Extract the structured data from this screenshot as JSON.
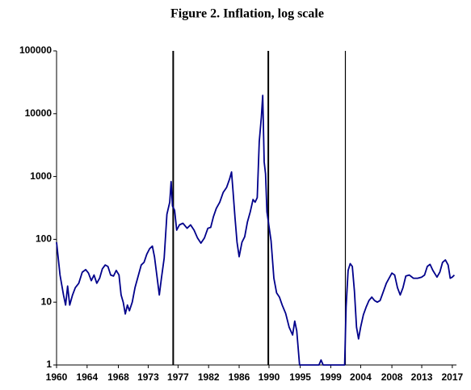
{
  "chart_data": {
    "type": "line",
    "title": "Figure 2. Inflation, log scale",
    "x": [
      1960.0,
      1960.5,
      1961.0,
      1961.3,
      1961.6,
      1961.9,
      1962.3,
      1962.7,
      1963.2,
      1963.7,
      1964.2,
      1964.6,
      1965.0,
      1965.4,
      1965.8,
      1966.2,
      1966.6,
      1967.0,
      1967.4,
      1967.8,
      1968.2,
      1968.6,
      1969.0,
      1969.3,
      1969.6,
      1969.9,
      1970.2,
      1970.5,
      1970.9,
      1971.3,
      1971.8,
      1972.2,
      1972.6,
      1973.0,
      1973.4,
      1973.8,
      1974.1,
      1974.5,
      1974.8,
      1975.1,
      1975.5,
      1975.9,
      1976.3,
      1976.5,
      1976.7,
      1977.0,
      1977.3,
      1977.7,
      1978.2,
      1978.8,
      1979.3,
      1979.8,
      1980.3,
      1980.8,
      1981.3,
      1981.8,
      1982.2,
      1982.6,
      1983.0,
      1983.5,
      1984.0,
      1984.5,
      1984.9,
      1985.2,
      1985.4,
      1985.7,
      1986.0,
      1986.3,
      1986.7,
      1987.1,
      1987.5,
      1987.9,
      1988.3,
      1988.6,
      1988.9,
      1989.2,
      1989.5,
      1989.7,
      1989.9,
      1990.1,
      1990.3,
      1990.6,
      1990.9,
      1991.3,
      1991.7,
      1992.1,
      1992.5,
      1993.0,
      1993.5,
      1994.0,
      1994.3,
      1994.6,
      1995.0,
      1997.8,
      1998.1,
      1998.4,
      2001.5,
      2001.7,
      2002.0,
      2002.3,
      2002.6,
      2002.9,
      2003.2,
      2003.5,
      2003.8,
      2004.2,
      2004.6,
      2005.0,
      2005.4,
      2005.8,
      2006.2,
      2006.6,
      2007.0,
      2007.5,
      2007.9,
      2008.3,
      2008.7,
      2009.1,
      2009.5,
      2009.9,
      2010.3,
      2010.8,
      2011.4,
      2012.0,
      2012.6,
      2013.0,
      2013.4,
      2013.8,
      2014.2,
      2014.8,
      2015.2,
      2015.6,
      2016.0,
      2016.4,
      2016.7,
      2017.0,
      2017.3
    ],
    "series": [
      {
        "name": "Inflation",
        "color": "#00008b",
        "values": [
          90,
          27,
          13,
          9,
          18,
          9,
          13,
          17,
          20,
          30,
          33,
          29,
          22,
          27,
          20,
          24,
          34,
          39,
          37,
          27,
          26,
          32,
          27,
          13,
          10,
          6.5,
          9,
          7.3,
          10,
          17,
          27,
          39,
          43,
          58,
          71,
          78,
          53,
          24,
          13,
          24,
          50,
          250,
          390,
          830,
          340,
          290,
          140,
          170,
          180,
          150,
          170,
          140,
          105,
          87,
          105,
          150,
          155,
          230,
          310,
          390,
          560,
          670,
          900,
          1180,
          620,
          220,
          90,
          53,
          90,
          110,
          190,
          275,
          430,
          390,
          460,
          3600,
          8800,
          19600,
          1700,
          1100,
          275,
          160,
          95,
          24,
          14,
          12,
          9,
          6.6,
          4,
          3,
          5,
          3.5,
          1,
          1,
          1.2,
          1,
          1,
          8.4,
          32,
          41,
          37,
          15,
          4,
          2.6,
          4,
          6.3,
          8.4,
          10.6,
          12,
          10.6,
          10,
          10.6,
          14,
          20,
          24,
          29,
          27,
          17,
          13,
          17,
          26,
          27,
          24,
          24,
          25,
          27,
          37,
          40,
          32,
          25,
          30,
          43,
          47,
          39,
          24,
          25,
          27
        ]
      }
    ],
    "vlines": [
      1976.8,
      1990.5,
      2001.6
    ],
    "log_y": true,
    "xlim": [
      1960,
      2017.6
    ],
    "ylim": [
      1,
      100000
    ],
    "yticks": [
      1,
      10,
      100,
      1000,
      10000,
      100000
    ],
    "xticks": [
      {
        "value": 1960,
        "label": "1960"
      },
      {
        "value": 1964.4,
        "label": "1964"
      },
      {
        "value": 1968.9,
        "label": "1968"
      },
      {
        "value": 1973.2,
        "label": "1973"
      },
      {
        "value": 1977.5,
        "label": "1977"
      },
      {
        "value": 1981.9,
        "label": "1982"
      },
      {
        "value": 1986.3,
        "label": "1986"
      },
      {
        "value": 1990.6,
        "label": "1990"
      },
      {
        "value": 1995.1,
        "label": "1995"
      },
      {
        "value": 1999.5,
        "label": "1999"
      },
      {
        "value": 2003.8,
        "label": "2004"
      },
      {
        "value": 2008.3,
        "label": "2008"
      },
      {
        "value": 2012.6,
        "label": "2013"
      },
      {
        "value": 2017,
        "label": "2017"
      }
    ]
  }
}
